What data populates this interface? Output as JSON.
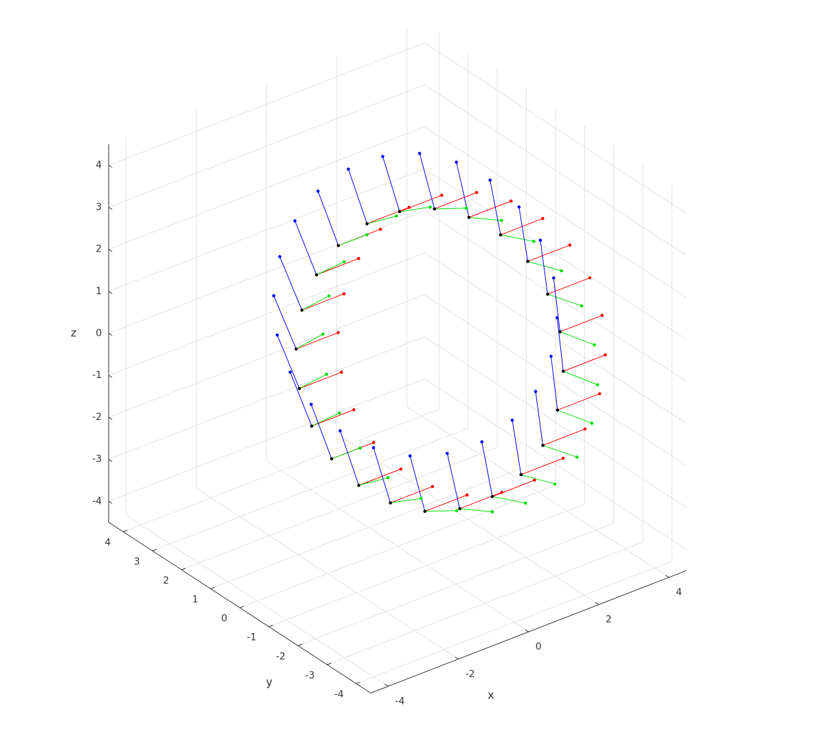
{
  "chart_data": {
    "type": "quiver3",
    "xlabel": "x",
    "ylabel": "y",
    "zlabel": "z",
    "xlim": [
      -4.5,
      4.5
    ],
    "ylim": [
      -4.5,
      4.5
    ],
    "zlim": [
      -4.5,
      4.5
    ],
    "xticks": [
      -4,
      -2,
      0,
      2,
      4
    ],
    "yticks": [
      -4,
      -3,
      -2,
      -1,
      0,
      1,
      2,
      3,
      4
    ],
    "zticks": [
      -4,
      -3,
      -2,
      -1,
      0,
      1,
      2,
      3,
      4
    ],
    "grid": true,
    "origin_color": "#000000",
    "x": [
      2.58,
      2.72,
      2.7,
      2.54,
      2.23,
      1.81,
      1.3,
      0.73,
      0.15,
      -0.41,
      -0.9,
      -1.3,
      -1.58,
      -1.72,
      -1.7,
      -1.54,
      -1.23,
      -0.81,
      -0.3,
      0.27,
      0.85,
      1.41,
      1.9,
      2.3
    ],
    "y": [
      -2.58,
      -2.3,
      -1.9,
      -1.41,
      -0.85,
      -0.27,
      0.3,
      0.81,
      1.23,
      1.54,
      1.7,
      1.72,
      1.58,
      1.3,
      0.9,
      0.41,
      -0.15,
      -0.73,
      -1.3,
      -1.81,
      -2.23,
      -2.54,
      -2.7,
      -2.72
    ],
    "z": [
      0,
      0.77,
      1.49,
      2.1,
      2.58,
      2.87,
      2.98,
      2.87,
      2.58,
      2.1,
      1.49,
      0.77,
      0,
      -0.77,
      -1.49,
      -2.1,
      -2.58,
      -2.87,
      -2.98,
      -2.87,
      -2.58,
      -2.1,
      -1.49,
      -0.77
    ],
    "series": [
      {
        "color": "#ff0000",
        "u": [
          1.2,
          1.2,
          1.2,
          1.2,
          1.2,
          1.2,
          1.2,
          1.2,
          1.2,
          1.2,
          1.2,
          1.2,
          1.2,
          1.2,
          1.2,
          1.2,
          1.2,
          1.2,
          1.2,
          1.2,
          1.2,
          1.2,
          1.2,
          1.2
        ],
        "v": [
          0,
          0,
          0,
          0,
          0,
          0,
          0,
          0,
          0,
          0,
          0,
          0,
          0,
          0,
          0,
          0,
          0,
          0,
          0,
          0,
          0,
          0,
          0,
          0
        ],
        "w": [
          0,
          0,
          0,
          0,
          0,
          0,
          0,
          0,
          0,
          0,
          0,
          0,
          0,
          0,
          0,
          0,
          0,
          0,
          0,
          0,
          0,
          0,
          0,
          0
        ]
      },
      {
        "color": "#00e000",
        "u": [
          0,
          0,
          0,
          0,
          0,
          0,
          0,
          0,
          0,
          0,
          0,
          0,
          0,
          0,
          0,
          0,
          0,
          0,
          0,
          0,
          0,
          0,
          0,
          0
        ],
        "v": [
          -1.18,
          -1.18,
          -1.17,
          -1.16,
          -1.14,
          -1.12,
          -1.09,
          -1.05,
          -1.01,
          -0.98,
          -0.95,
          -0.93,
          -0.92,
          -0.93,
          -0.95,
          -0.98,
          -1.01,
          -1.05,
          -1.09,
          -1.12,
          -1.14,
          -1.16,
          -1.17,
          -1.18
        ],
        "w": [
          0.21,
          0.22,
          0.25,
          0.3,
          0.36,
          0.43,
          0.51,
          0.58,
          0.64,
          0.7,
          0.74,
          0.76,
          0.77,
          0.76,
          0.74,
          0.7,
          0.64,
          0.58,
          0.51,
          0.43,
          0.36,
          0.3,
          0.25,
          0.22
        ]
      },
      {
        "color": "#0000ff",
        "u": [
          0,
          0,
          0,
          0,
          0,
          0,
          0,
          0,
          0,
          0,
          0,
          0,
          0,
          0,
          0,
          0,
          0,
          0,
          0,
          0,
          0,
          0,
          0,
          0
        ],
        "v": [
          0.21,
          0.22,
          0.25,
          0.3,
          0.36,
          0.43,
          0.51,
          0.58,
          0.64,
          0.7,
          0.74,
          0.76,
          0.77,
          0.76,
          0.74,
          0.7,
          0.64,
          0.58,
          0.51,
          0.43,
          0.36,
          0.3,
          0.25,
          0.22
        ],
        "w": [
          1.18,
          1.18,
          1.17,
          1.16,
          1.14,
          1.12,
          1.09,
          1.05,
          1.01,
          0.98,
          0.95,
          0.93,
          0.92,
          0.93,
          0.95,
          0.98,
          1.01,
          1.05,
          1.09,
          1.12,
          1.14,
          1.16,
          1.17,
          1.18
        ]
      }
    ]
  }
}
